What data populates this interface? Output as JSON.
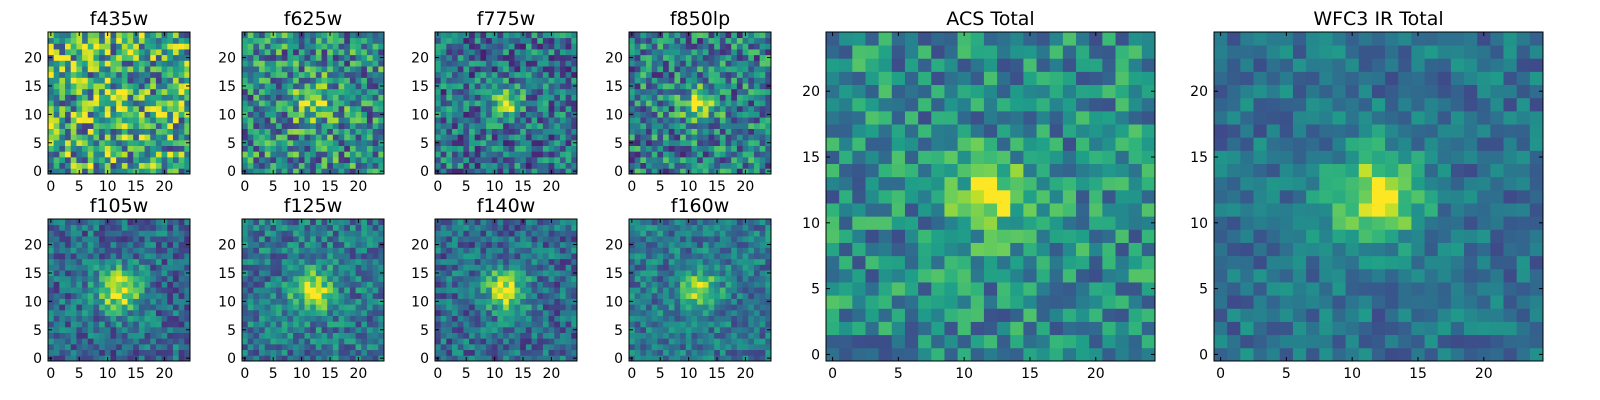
{
  "chart_data": [
    {
      "type": "heatmap",
      "title": "f435w",
      "grid_size": 25,
      "peak": 0.12,
      "noise": 0.85,
      "base": 0.6,
      "sigma": 2.5,
      "seed": 11,
      "xticks": [
        "0",
        "5",
        "10",
        "15",
        "20"
      ],
      "yticks": [
        "0",
        "5",
        "10",
        "15",
        "20"
      ]
    },
    {
      "type": "heatmap",
      "title": "f625w",
      "grid_size": 25,
      "peak": 0.35,
      "noise": 0.7,
      "base": 0.48,
      "sigma": 2.5,
      "seed": 23,
      "xticks": [
        "0",
        "5",
        "10",
        "15",
        "20"
      ],
      "yticks": [
        "0",
        "5",
        "10",
        "15",
        "20"
      ]
    },
    {
      "type": "heatmap",
      "title": "f775w",
      "grid_size": 25,
      "peak": 0.55,
      "noise": 0.6,
      "base": 0.38,
      "sigma": 1.8,
      "seed": 37,
      "xticks": [
        "0",
        "5",
        "10",
        "15",
        "20"
      ],
      "yticks": [
        "0",
        "5",
        "10",
        "15",
        "20"
      ]
    },
    {
      "type": "heatmap",
      "title": "f850lp",
      "grid_size": 25,
      "peak": 0.45,
      "noise": 0.65,
      "base": 0.42,
      "sigma": 2.2,
      "seed": 41,
      "xticks": [
        "0",
        "5",
        "10",
        "15",
        "20"
      ],
      "yticks": [
        "0",
        "5",
        "10",
        "15",
        "20"
      ]
    },
    {
      "type": "heatmap",
      "title": "f105w",
      "grid_size": 25,
      "peak": 0.6,
      "noise": 0.45,
      "base": 0.35,
      "sigma": 2.8,
      "seed": 53,
      "xticks": [
        "0",
        "5",
        "10",
        "15",
        "20"
      ],
      "yticks": [
        "0",
        "5",
        "10",
        "15",
        "20"
      ]
    },
    {
      "type": "heatmap",
      "title": "f125w",
      "grid_size": 25,
      "peak": 0.55,
      "noise": 0.45,
      "base": 0.4,
      "sigma": 2.6,
      "seed": 67,
      "xticks": [
        "0",
        "5",
        "10",
        "15",
        "20"
      ],
      "yticks": [
        "0",
        "5",
        "10",
        "15",
        "20"
      ]
    },
    {
      "type": "heatmap",
      "title": "f140w",
      "grid_size": 25,
      "peak": 0.6,
      "noise": 0.45,
      "base": 0.35,
      "sigma": 2.6,
      "seed": 71,
      "xticks": [
        "0",
        "5",
        "10",
        "15",
        "20"
      ],
      "yticks": [
        "0",
        "5",
        "10",
        "15",
        "20"
      ]
    },
    {
      "type": "heatmap",
      "title": "f160w",
      "grid_size": 25,
      "peak": 0.55,
      "noise": 0.4,
      "base": 0.4,
      "sigma": 2.2,
      "seed": 83,
      "xticks": [
        "0",
        "5",
        "10",
        "15",
        "20"
      ],
      "yticks": [
        "0",
        "5",
        "10",
        "15",
        "20"
      ]
    },
    {
      "type": "heatmap",
      "title": "ACS Total",
      "grid_size": 25,
      "peak": 0.5,
      "noise": 0.5,
      "base": 0.48,
      "sigma": 1.9,
      "seed": 97,
      "xticks": [
        "0",
        "5",
        "10",
        "15",
        "20"
      ],
      "yticks": [
        "0",
        "5",
        "10",
        "15",
        "20"
      ]
    },
    {
      "type": "heatmap",
      "title": "WFC3 IR Total",
      "grid_size": 25,
      "peak": 0.6,
      "noise": 0.32,
      "base": 0.38,
      "sigma": 2.4,
      "seed": 101,
      "xticks": [
        "0",
        "5",
        "10",
        "15",
        "20"
      ],
      "yticks": [
        "0",
        "5",
        "10",
        "15",
        "20"
      ]
    }
  ]
}
